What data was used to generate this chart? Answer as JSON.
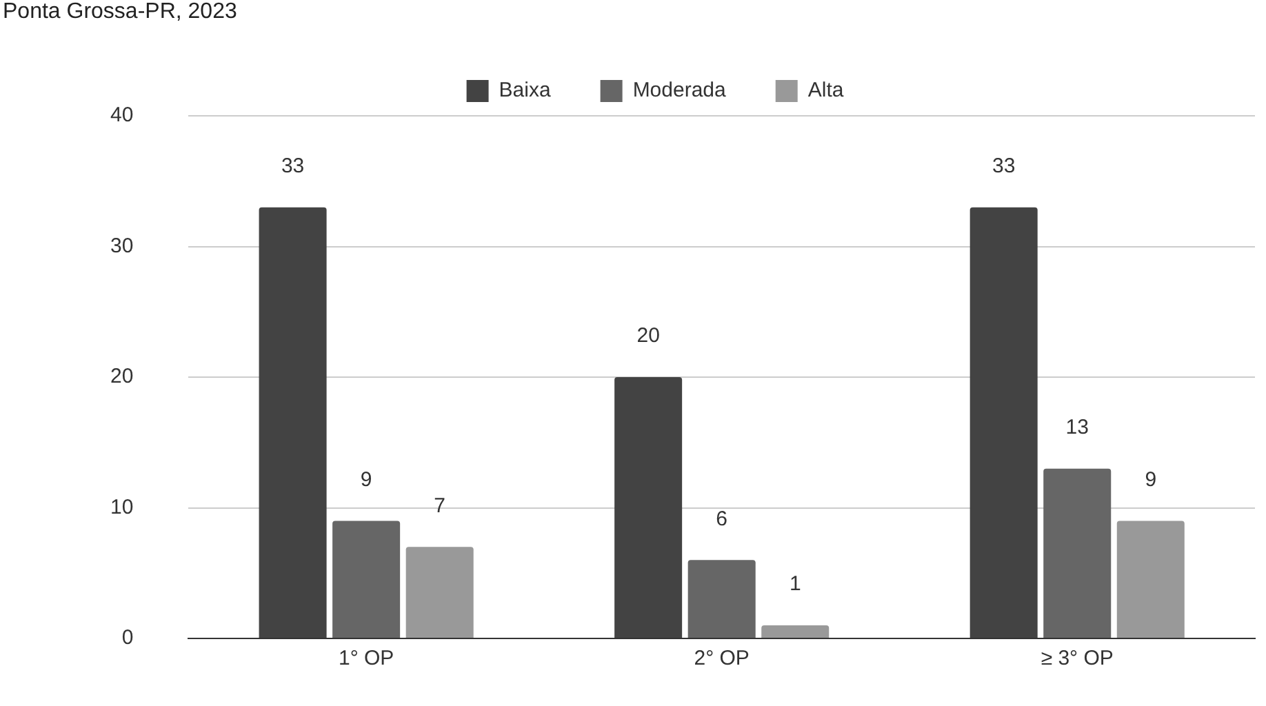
{
  "chart_data": {
    "type": "bar",
    "title": "Ponta Grossa-PR, 2023",
    "categories": [
      "1° OP",
      "2° OP",
      "≥ 3° OP"
    ],
    "series": [
      {
        "name": "Baixa",
        "color": "#434343",
        "values": [
          33,
          20,
          33
        ]
      },
      {
        "name": "Moderada",
        "color": "#666666",
        "values": [
          9,
          6,
          13
        ]
      },
      {
        "name": "Alta",
        "color": "#999999",
        "values": [
          7,
          1,
          9
        ]
      }
    ],
    "ylim": [
      0,
      40
    ],
    "yticks": [
      0,
      10,
      20,
      30,
      40
    ],
    "grid": "y",
    "legend": "top",
    "data_labels": true
  }
}
